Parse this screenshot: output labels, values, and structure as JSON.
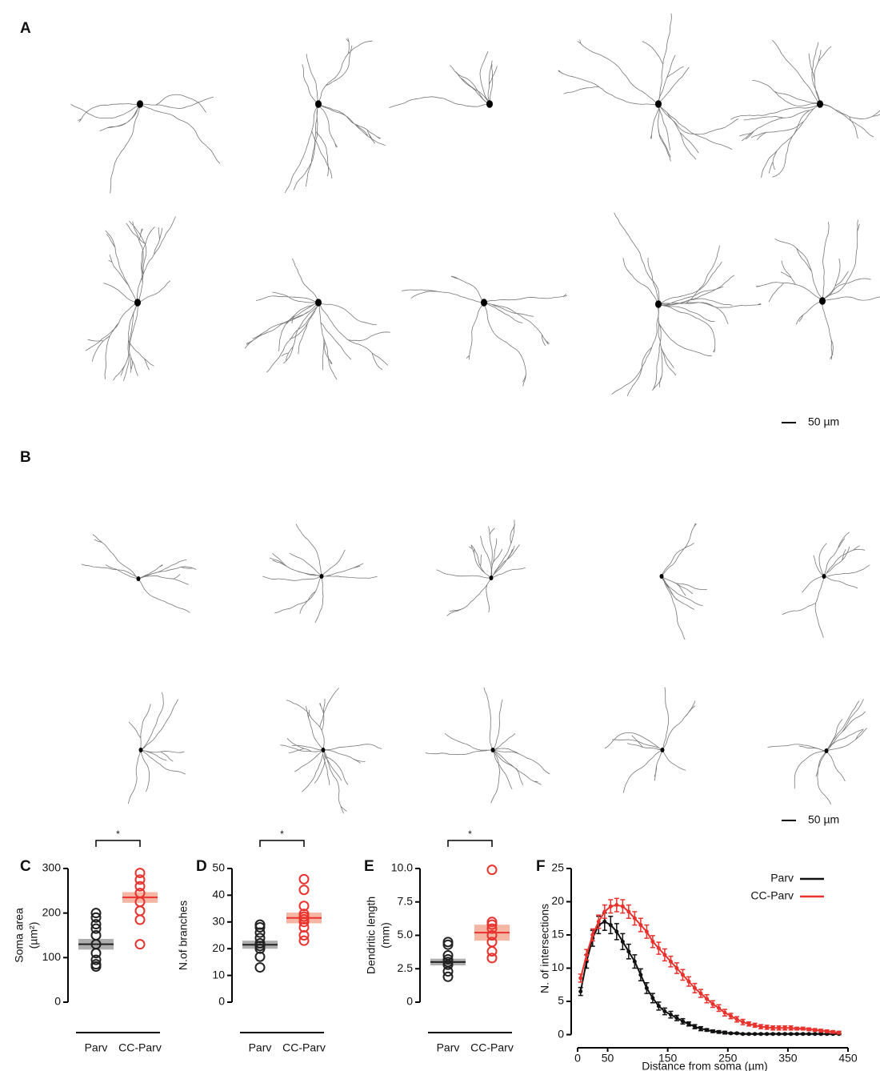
{
  "panel_labels": [
    "A",
    "B",
    "C",
    "D",
    "E",
    "F"
  ],
  "scale_bar_label": "50 µm",
  "chart_data": [
    {
      "type": "dot",
      "ylabel": [
        "Soma area",
        "(µm²)"
      ],
      "categories": [
        "Parv",
        "CC-Parv"
      ],
      "significance": "*",
      "ylim": [
        0,
        300
      ],
      "yticks": [
        0,
        100,
        200,
        300
      ],
      "groups": [
        {
          "color": "#222222",
          "band_color": "#9a9a9a",
          "values": [
            200,
            190,
            175,
            165,
            150,
            130,
            110,
            95,
            85,
            80
          ],
          "mean": 130,
          "sem": 12
        },
        {
          "color": "#e8322d",
          "band_color": "#f3a58c",
          "values": [
            290,
            275,
            260,
            245,
            225,
            205,
            185,
            130
          ],
          "mean": 235,
          "sem": 12
        }
      ]
    },
    {
      "type": "dot",
      "ylabel": [
        "N.of branches"
      ],
      "categories": [
        "Parv",
        "CC-Parv"
      ],
      "significance": "*",
      "ylim": [
        0,
        50
      ],
      "yticks": [
        0,
        10,
        20,
        30,
        40,
        50
      ],
      "groups": [
        {
          "color": "#222222",
          "band_color": "#9a9a9a",
          "values": [
            29,
            28,
            26,
            24,
            22,
            21,
            20,
            17,
            13
          ],
          "mean": 21.5,
          "sem": 1.5
        },
        {
          "color": "#e8322d",
          "band_color": "#f3a58c",
          "values": [
            46,
            42,
            36,
            33,
            32,
            31,
            30,
            28,
            25,
            23
          ],
          "mean": 31.5,
          "sem": 2
        }
      ]
    },
    {
      "type": "dot",
      "ylabel": [
        "Dendritic length",
        "(mm)"
      ],
      "categories": [
        "Parv",
        "CC-Parv"
      ],
      "significance": "*",
      "ylim": [
        0,
        10
      ],
      "yticks": [
        0,
        2.5,
        {
          "value": 5,
          "label": "5.0"
        },
        7.5,
        {
          "value": 10,
          "label": "10.0"
        }
      ],
      "groups": [
        {
          "color": "#222222",
          "band_color": "#9a9a9a",
          "values": [
            4.5,
            4.3,
            3.5,
            3.2,
            3.0,
            2.8,
            2.3,
            1.9
          ],
          "mean": 3.0,
          "sem": 0.25
        },
        {
          "color": "#e8322d",
          "band_color": "#f3a58c",
          "values": [
            9.9,
            6.0,
            5.8,
            5.5,
            5.0,
            4.5,
            3.8,
            3.3
          ],
          "mean": 5.2,
          "sem": 0.6
        }
      ]
    },
    {
      "type": "line",
      "xlabel": "Distance from soma (µm)",
      "ylabel": "N. of intersections",
      "legend": "top-right",
      "xlim": [
        0,
        450
      ],
      "xticks": [
        0,
        50,
        150,
        250,
        350,
        450
      ],
      "ylim": [
        -1.5,
        25
      ],
      "yticks": [
        0,
        5,
        10,
        15,
        20,
        25
      ],
      "x": [
        5,
        15,
        25,
        35,
        45,
        55,
        65,
        75,
        85,
        95,
        105,
        115,
        125,
        135,
        145,
        155,
        165,
        175,
        185,
        195,
        205,
        215,
        225,
        235,
        245,
        255,
        265,
        275,
        285,
        295,
        305,
        315,
        325,
        335,
        345,
        355,
        365,
        375,
        385,
        395,
        405,
        415,
        425,
        435
      ],
      "series": [
        {
          "name": "Parv",
          "color": "#111111",
          "values": [
            6.5,
            11,
            14.5,
            16.5,
            17,
            16.5,
            15.5,
            14,
            12.5,
            11,
            9,
            7,
            5.5,
            4.3,
            3.5,
            3,
            2.5,
            2,
            1.6,
            1.2,
            0.9,
            0.7,
            0.5,
            0.4,
            0.3,
            0.2,
            0.2,
            0.1,
            0.1,
            0.1,
            0.1,
            0.1,
            0.1,
            0.1,
            0.1,
            0.1,
            0.1,
            0.1,
            0.1,
            0.1,
            0.1,
            0.1,
            0.1,
            0.1
          ],
          "errors": [
            0.6,
            1,
            1.2,
            1.3,
            1.3,
            1.3,
            1.2,
            1.2,
            1.1,
            1,
            0.9,
            0.8,
            0.7,
            0.6,
            0.5,
            0.5,
            0.4,
            0.4,
            0.3,
            0.3,
            0.3,
            0.2,
            0.2,
            0.2,
            0.2,
            0.1,
            0.1,
            0.1,
            0.1,
            0.1,
            0.1,
            0.1,
            0.1,
            0.1,
            0.1,
            0.1,
            0.1,
            0.1,
            0.1,
            0.1,
            0.1,
            0.1,
            0.1,
            0.1
          ]
        },
        {
          "name": "CC-Parv",
          "color": "#e8322d",
          "values": [
            8.5,
            12,
            15,
            17,
            18.5,
            19.3,
            19.5,
            19.3,
            18.5,
            17.5,
            16.5,
            15.5,
            14,
            13,
            12,
            11,
            10,
            9,
            8,
            7,
            6.2,
            5.4,
            4.6,
            4,
            3.3,
            2.8,
            2.3,
            1.9,
            1.6,
            1.4,
            1.2,
            1.1,
            1,
            1,
            1,
            1,
            0.9,
            0.9,
            0.8,
            0.7,
            0.6,
            0.5,
            0.4,
            0.3
          ],
          "errors": [
            0.6,
            0.8,
            0.9,
            1,
            1,
            1,
            1,
            1,
            1,
            1,
            1,
            1,
            0.9,
            0.9,
            0.9,
            0.8,
            0.8,
            0.8,
            0.7,
            0.7,
            0.6,
            0.6,
            0.5,
            0.5,
            0.5,
            0.4,
            0.4,
            0.4,
            0.3,
            0.3,
            0.3,
            0.3,
            0.3,
            0.3,
            0.3,
            0.3,
            0.2,
            0.2,
            0.2,
            0.2,
            0.2,
            0.2,
            0.2,
            0.2
          ]
        }
      ]
    }
  ]
}
